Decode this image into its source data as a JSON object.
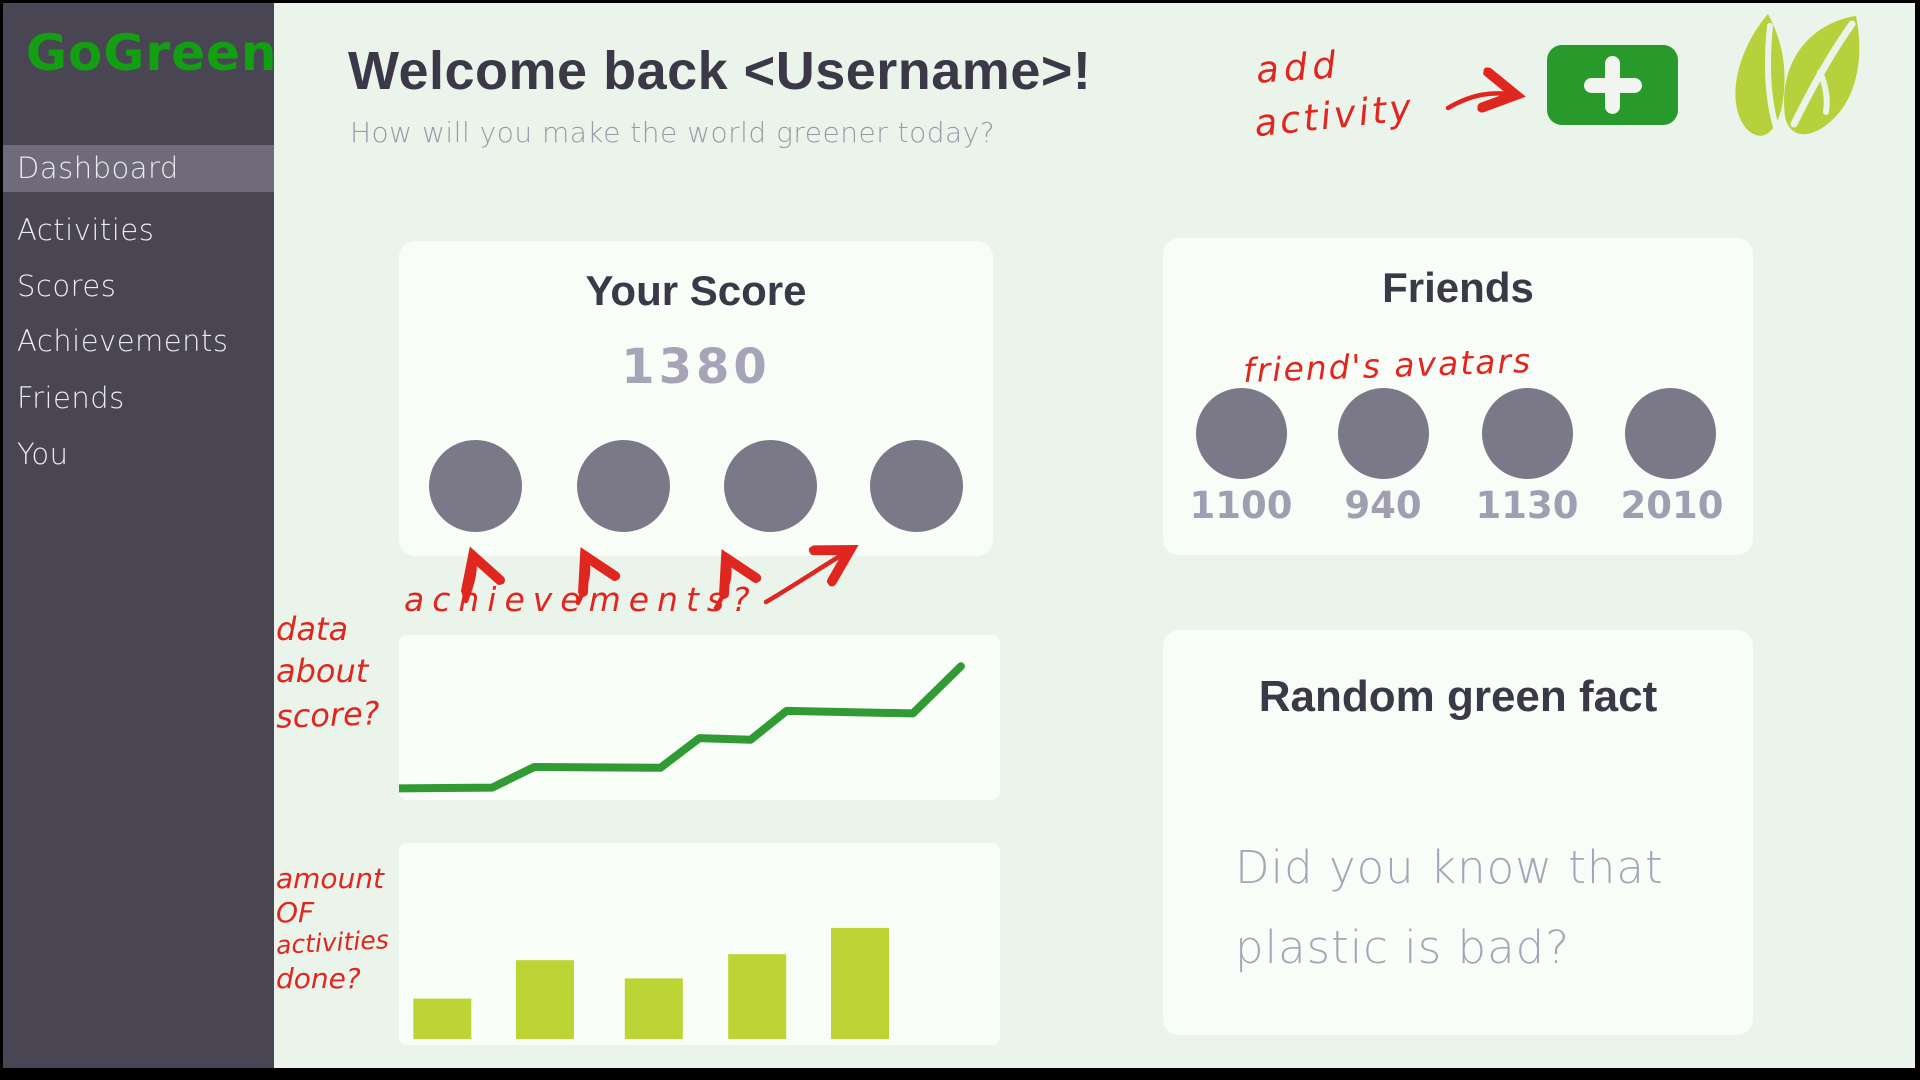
{
  "app": {
    "name": "GoGreen"
  },
  "colors": {
    "sidebar_bg": "#494552",
    "sidebar_highlight": "#6f6b7a",
    "logo_green": "#12a012",
    "main_bg": "#ebf4eb",
    "card_bg": "#f8fdf7",
    "heading_dark": "#3b3947",
    "muted_gray": "#9b99a8",
    "placeholder_gray": "#7b7887",
    "button_green": "#28992b",
    "line_green": "#319b33",
    "lime": "#bcd434",
    "annotation_red": "#e0271f"
  },
  "sidebar": {
    "logo": "GoGreen",
    "items": [
      {
        "label": "Dashboard",
        "active": true
      },
      {
        "label": "Activities",
        "active": false
      },
      {
        "label": "Scores",
        "active": false
      },
      {
        "label": "Achievements",
        "active": false
      },
      {
        "label": "Friends",
        "active": false
      },
      {
        "label": "You",
        "active": false
      }
    ]
  },
  "header": {
    "title": "Welcome back <Username>!",
    "subtitle": "How will you make the world greener today?"
  },
  "score_card": {
    "title": "Your Score",
    "score": "1380",
    "achievement_slots": 4
  },
  "friends_card": {
    "title": "Friends",
    "friends": [
      {
        "score": "1100"
      },
      {
        "score": "940"
      },
      {
        "score": "1130"
      },
      {
        "score": "2010"
      }
    ]
  },
  "fact_card": {
    "title": "Random green fact",
    "body": "Did you know that plastic is bad?"
  },
  "annotations": {
    "add_activity_line1": "add",
    "add_activity_line2": "activity",
    "achievements": "achievements?",
    "data_line1": "data",
    "data_line2": "about",
    "data_line3": "score?",
    "amount_line1": "amount",
    "amount_line2": "OF",
    "amount_line3": "activities",
    "amount_line4": "done?",
    "friends_avatars": "friend's avatars"
  },
  "chart_data": [
    {
      "type": "line",
      "title": "",
      "xlabel": "",
      "ylabel": "",
      "x_range": [
        0,
        1
      ],
      "y_range": [
        0,
        1
      ],
      "grid": false,
      "legend": false,
      "line_color": "#319b33",
      "series": [
        {
          "name": "score-over-time",
          "points": [
            [
              0.0,
              0.07
            ],
            [
              0.155,
              0.075
            ],
            [
              0.225,
              0.2
            ],
            [
              0.435,
              0.195
            ],
            [
              0.5,
              0.375
            ],
            [
              0.585,
              0.365
            ],
            [
              0.645,
              0.54
            ],
            [
              0.855,
              0.525
            ],
            [
              0.935,
              0.81
            ]
          ]
        }
      ],
      "note": "hand-drawn wireframe staircase line, no axes or tick labels"
    },
    {
      "type": "bar",
      "title": "",
      "xlabel": "",
      "ylabel": "",
      "categories": [
        "",
        "",
        "",
        "",
        ""
      ],
      "values": [
        0.2,
        0.39,
        0.3,
        0.42,
        0.55
      ],
      "centers": [
        0.072,
        0.243,
        0.424,
        0.596,
        0.767
      ],
      "bar_color": "#bcd434",
      "y_range": [
        0,
        1
      ],
      "grid": false,
      "note": "wireframe bar chart of activities done, no axes or tick labels"
    }
  ]
}
